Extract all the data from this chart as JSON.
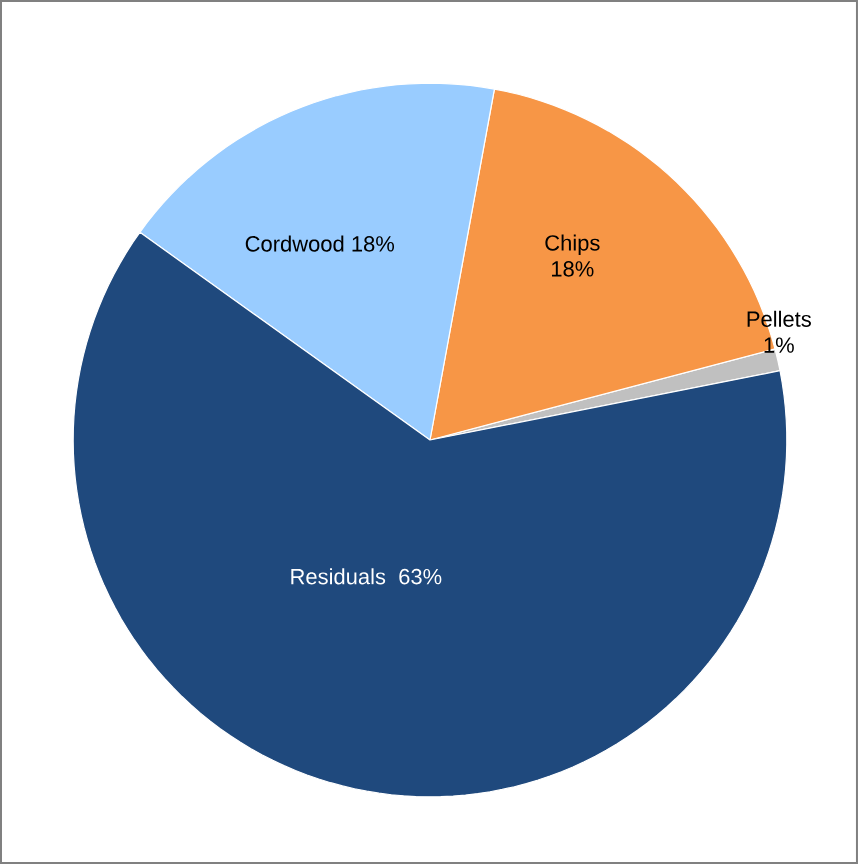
{
  "chart_data": {
    "type": "pie",
    "categories": [
      "Pellets",
      "Chips",
      "Cordwood",
      "Residuals"
    ],
    "values": [
      1,
      18,
      18,
      63
    ],
    "value_labels": [
      "1%",
      "18%",
      "18%",
      "63%"
    ],
    "colors": [
      "#c0c0c0",
      "#f79646",
      "#99ccff",
      "#1f497d"
    ]
  }
}
